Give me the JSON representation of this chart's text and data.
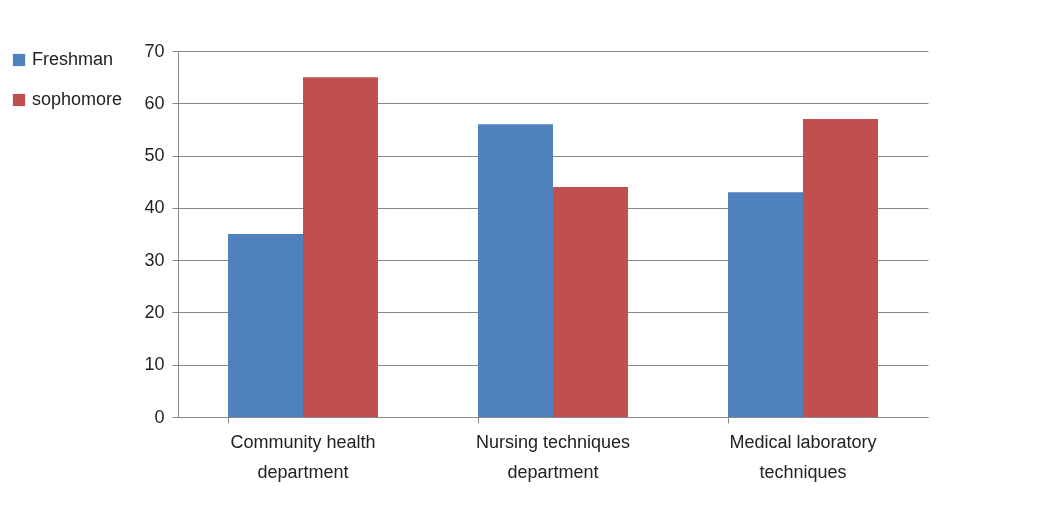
{
  "chart_data": {
    "type": "bar",
    "categories": [
      "Community health department",
      "Nursing techniques department",
      "Medical laboratory techniques"
    ],
    "series": [
      {
        "name": "Freshman",
        "color": "#4f81bd",
        "values": [
          35,
          56,
          43
        ]
      },
      {
        "name": "sophomore",
        "color": "#c0504d",
        "values": [
          65,
          44,
          57
        ]
      }
    ],
    "ylim": [
      0,
      70
    ],
    "yticks": [
      0,
      10,
      20,
      30,
      40,
      50,
      60,
      70
    ],
    "grid": "y",
    "legend": "left"
  }
}
